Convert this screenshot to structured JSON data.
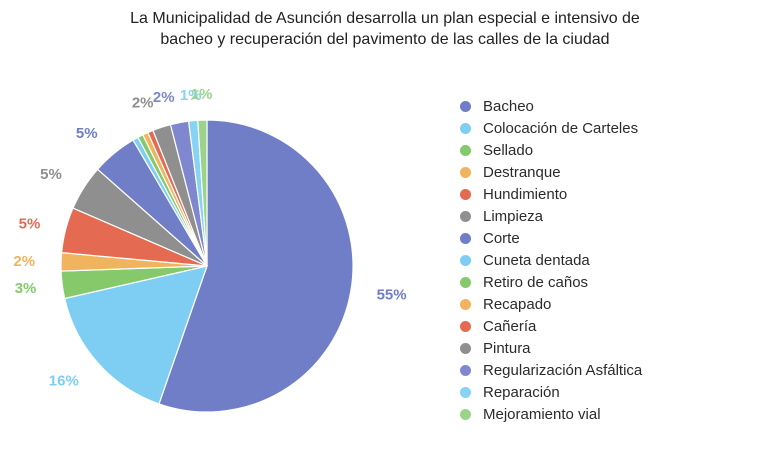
{
  "chart_data": {
    "type": "pie",
    "title_lines": [
      "La Municipalidad de Asunción desarrolla un plan especial e intensivo de",
      "bacheo y recuperación del pavimento de las calles de la ciudad"
    ],
    "slices": [
      {
        "name": "Bacheo",
        "value": 55,
        "label": "55%",
        "color": "#6f7ec7"
      },
      {
        "name": "Colocación de Carteles",
        "value": 16,
        "label": "16%",
        "color": "#7ecdf2"
      },
      {
        "name": "Sellado",
        "value": 3,
        "label": "3%",
        "color": "#86c96b"
      },
      {
        "name": "Destranque",
        "value": 2,
        "label": "2%",
        "color": "#f0b45e"
      },
      {
        "name": "Hundimiento",
        "value": 5,
        "label": "5%",
        "color": "#e56a52"
      },
      {
        "name": "Limpieza",
        "value": 5,
        "label": "5%",
        "color": "#8f8f8f"
      },
      {
        "name": "Corte",
        "value": 5,
        "label": "5%",
        "color": "#6f7ec7"
      },
      {
        "name": "Cuneta dentada",
        "value": 0.6,
        "label": "",
        "color": "#7ecdf2"
      },
      {
        "name": "Retiro de caños",
        "value": 0.6,
        "label": "",
        "color": "#86c96b"
      },
      {
        "name": "Recapado",
        "value": 0.6,
        "label": "",
        "color": "#f0b45e"
      },
      {
        "name": "Cañería",
        "value": 0.6,
        "label": "",
        "color": "#e56a52"
      },
      {
        "name": "Pintura",
        "value": 2,
        "label": "2%",
        "color": "#8f8f8f"
      },
      {
        "name": "Regularización Asfáltica",
        "value": 2,
        "label": "2%",
        "color": "#7f88cf"
      },
      {
        "name": "Reparación",
        "value": 1,
        "label": "1%",
        "color": "#86d3f3"
      },
      {
        "name": "Mejoramiento vial",
        "value": 1,
        "label": "1%",
        "color": "#9bd38a"
      }
    ],
    "legend_position": "right"
  }
}
